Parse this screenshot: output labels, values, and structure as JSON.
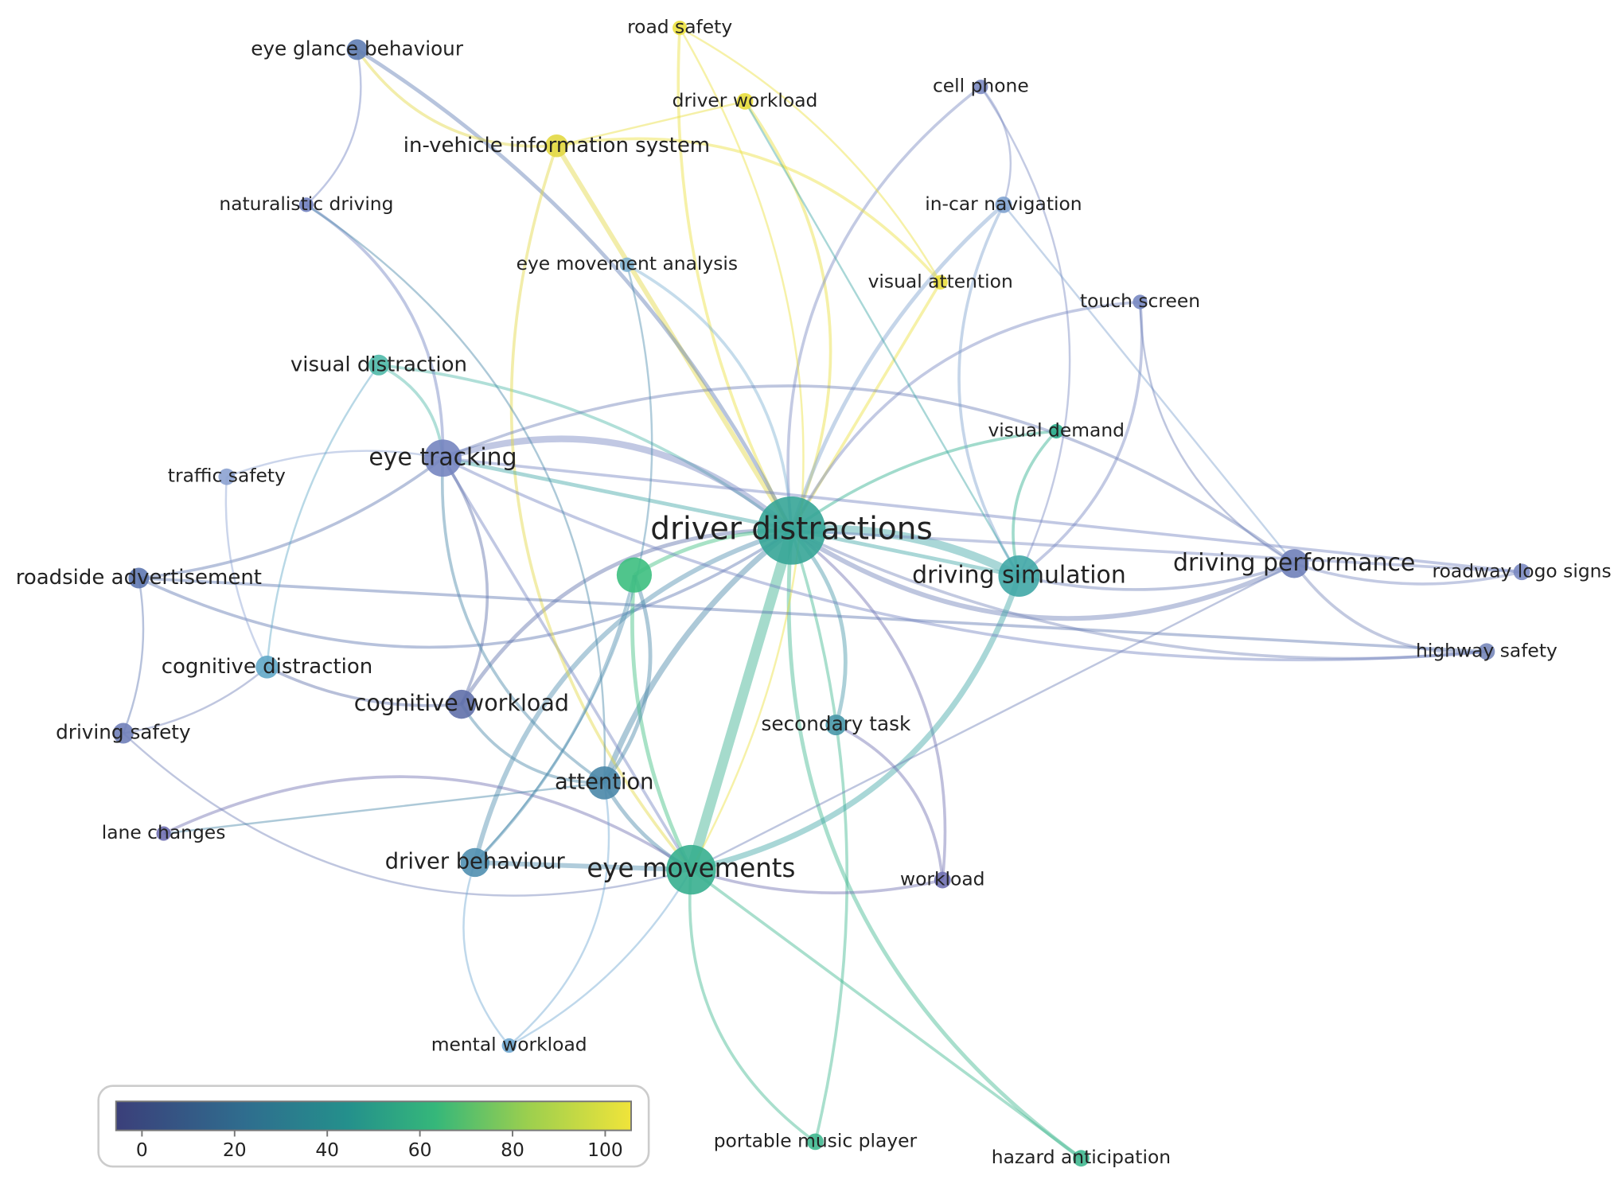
{
  "nodes": [
    {
      "label": "eye glance behaviour",
      "color": "#5f7db3"
    },
    {
      "label": "road safety",
      "color": "#ece13f"
    },
    {
      "label": "driver workload",
      "color": "#e8dd3c"
    },
    {
      "label": "in-vehicle information system",
      "color": "#e2d843"
    },
    {
      "label": "cell phone",
      "color": "#7b8ac2"
    },
    {
      "label": "naturalistic driving",
      "color": "#7282c0"
    },
    {
      "label": "in-car navigation",
      "color": "#7fa2cf"
    },
    {
      "label": "eye movement analysis",
      "color": "#7fb2d3"
    },
    {
      "label": "visual attention",
      "color": "#eadf3e"
    },
    {
      "label": "touch screen",
      "color": "#7888c2"
    },
    {
      "label": "visual distraction",
      "color": "#4fb9a8"
    },
    {
      "label": "visual demand",
      "color": "#2faf8e"
    },
    {
      "label": "eye tracking",
      "color": "#7585c0"
    },
    {
      "label": "traffic safety",
      "color": "#8ca2d2"
    },
    {
      "label": "driver distractions",
      "color": "#36a597"
    },
    {
      "color": "#3dbf80"
    },
    {
      "label": "driving simulation",
      "color": "#40a7a6"
    },
    {
      "label": "driving performance",
      "color": "#6f80b9"
    },
    {
      "label": "roadway logo signs",
      "color": "#7b8ac2"
    },
    {
      "label": "roadside advertisement",
      "color": "#5f78b1"
    },
    {
      "label": "highway safety",
      "color": "#7787ba"
    },
    {
      "label": "cognitive distraction",
      "color": "#62a8c8"
    },
    {
      "label": "cognitive workload",
      "color": "#6070aa"
    },
    {
      "label": "driving safety",
      "color": "#7080b9"
    },
    {
      "label": "secondary task",
      "color": "#4897a8"
    },
    {
      "label": "attention",
      "color": "#4a87a8"
    },
    {
      "label": "lane changes",
      "color": "#7070b2"
    },
    {
      "label": "driver behaviour",
      "color": "#508fb0"
    },
    {
      "label": "eye movements",
      "color": "#37af8f"
    },
    {
      "label": "workload",
      "color": "#7070b2"
    },
    {
      "label": "mental workload",
      "color": "#70a8d2"
    },
    {
      "label": "portable music player",
      "color": "#40b890"
    },
    {
      "label": "hazard anticipation",
      "color": "#40b890"
    }
  ],
  "colorbar": {
    "lim": [
      -5.6,
      105.6
    ],
    "ticks": [
      0,
      20,
      40,
      60,
      80,
      100
    ]
  }
}
